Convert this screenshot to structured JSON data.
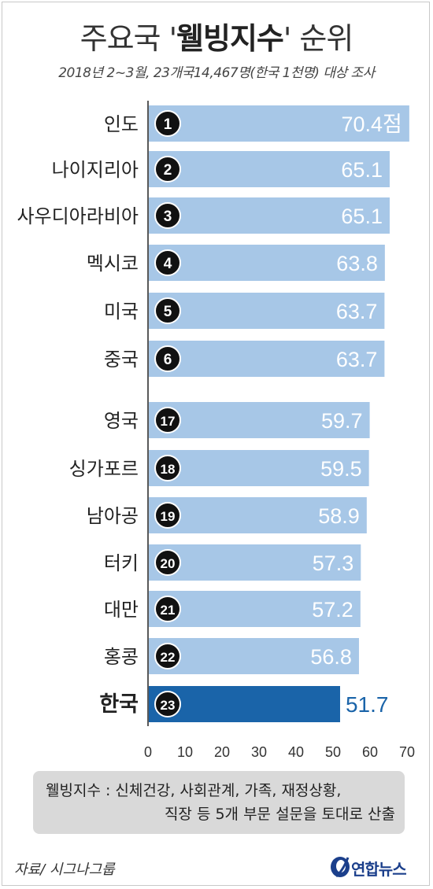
{
  "header": {
    "title_pre": "주요국 '",
    "title_bold": "웰빙지수",
    "title_post": "' 순위",
    "subtitle": "2018년 2~3월, 23개국14,467명(한국 1천명) 대상 조사"
  },
  "chart_data": {
    "type": "bar",
    "orientation": "horizontal",
    "categories": [
      "인도",
      "나이지리아",
      "사우디아라비아",
      "멕시코",
      "미국",
      "중국",
      "영국",
      "싱가포르",
      "남아공",
      "터키",
      "대만",
      "홍콩",
      "한국"
    ],
    "ranks": [
      "1",
      "2",
      "3",
      "4",
      "5",
      "6",
      "17",
      "18",
      "19",
      "20",
      "21",
      "22",
      "23"
    ],
    "values": [
      70.4,
      65.1,
      65.1,
      63.8,
      63.7,
      63.7,
      59.7,
      59.5,
      58.9,
      57.3,
      57.2,
      56.8,
      51.7
    ],
    "value_labels": [
      "70.4점",
      "65.1",
      "65.1",
      "63.8",
      "63.7",
      "63.7",
      "59.7",
      "59.5",
      "58.9",
      "57.3",
      "57.2",
      "56.8",
      "51.7"
    ],
    "highlight": "한국",
    "xlim": [
      0,
      70
    ],
    "xticks": [
      "0",
      "10",
      "20",
      "30",
      "40",
      "50",
      "60",
      "70"
    ],
    "colors": {
      "bar": "#a7c7e7",
      "bar_highlight": "#1a64a9",
      "rank_badge": "#111111",
      "value_text": "#ffffff",
      "value_text_highlight": "#1a64a9"
    }
  },
  "note": {
    "line1": "웰빙지수 : 신체건강, 사회관계, 가족, 재정상황,",
    "line2": "직장 등 5개 부문 설문을 토대로 산출"
  },
  "source": "자료/ 시그나그룹",
  "logo": {
    "text": "연합뉴스",
    "icon": "yonhap-logo-icon",
    "color": "#1b3f8b"
  }
}
